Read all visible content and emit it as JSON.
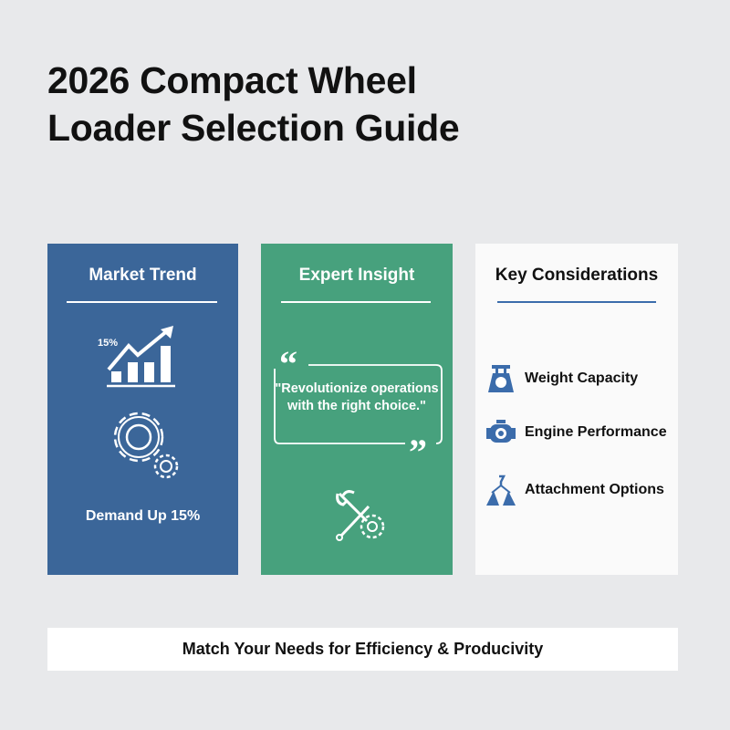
{
  "title_lines": [
    "2026 Compact Wheel",
    "Loader Selection Guide"
  ],
  "cards": {
    "market": {
      "heading": "Market Trend",
      "chart_label": "15%",
      "caption": "Demand Up 15%",
      "color": "#3b6699",
      "icons": [
        "trend-chart-icon",
        "gears-icon"
      ]
    },
    "expert": {
      "heading": "Expert Insight",
      "quote": "\"Revolutionize operations with the right choice.\"",
      "color": "#47a17d",
      "icons": [
        "quote-open-icon",
        "quote-close-icon",
        "wrench-gear-icon"
      ]
    },
    "key": {
      "heading": "Key Considerations",
      "accent": "#3b6cab",
      "items": [
        {
          "label": "Weight Capacity",
          "icon": "weight-scale-icon"
        },
        {
          "label": "Engine Performance",
          "icon": "engine-icon"
        },
        {
          "label": "Attachment Options",
          "icon": "attachment-hook-icon"
        }
      ]
    }
  },
  "footer": "Match Your Needs for Efficiency & Producivity"
}
